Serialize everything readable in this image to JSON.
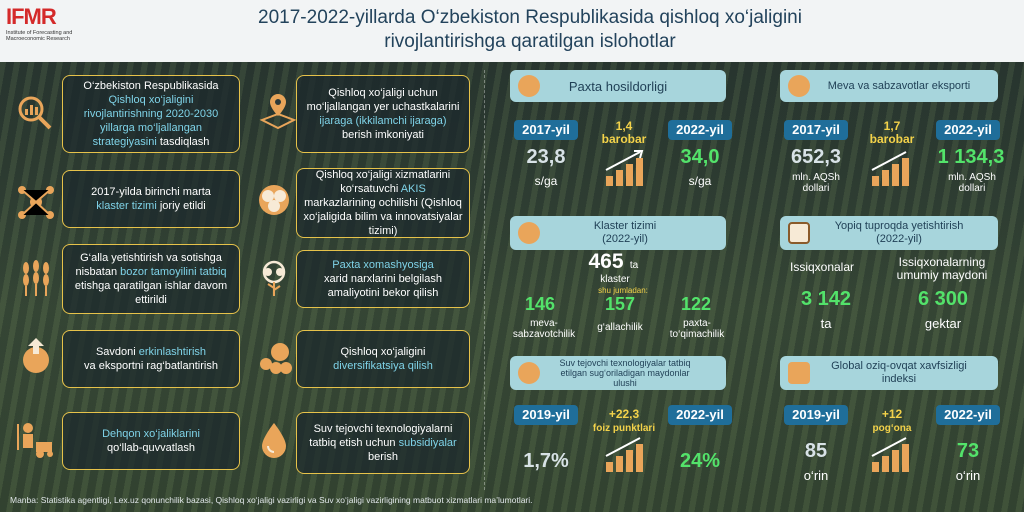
{
  "header": {
    "logo_text": "IFMR",
    "logo_sub": "Institute of Forecasting and Macroeconomic Research",
    "title_line1": "2017-2022-yillarda O‘zbekiston Respublikasida qishloq xo‘jaligini",
    "title_line2": "rivojlantirishga qaratilgan islohotlar"
  },
  "reforms": [
    {
      "pre": "O‘zbekiston Respublikasida",
      "hl": "Qishloq xo‘jaligini rivojlantirishning 2020-2030 yillarga mo‘ljallangan strategiyasini",
      "post": "tasdiqlash"
    },
    {
      "pre": "Qishloq xo‘jaligi uchun mo‘ljallangan yer uchastkalarini",
      "hl": "ijaraga (ikkilamchi ijaraga)",
      "post": "berish imkoniyati"
    },
    {
      "pre": "2017-yilda birinchi marta",
      "hl": "klaster tizimi",
      "post": "joriy etildi"
    },
    {
      "pre": "Qishloq xo‘jaligi xizmatlarini ko‘rsatuvchi",
      "hl": "AKIS",
      "post": "markazlarining ochilishi (Qishloq xo‘jaligida bilim va innovatsiyalar tizimi)"
    },
    {
      "pre": "G‘alla yetishtirish va sotishga nisbatan",
      "hl": "bozor tamoyilini tatbiq",
      "post": "etishga qaratilgan ishlar davom ettirildi"
    },
    {
      "pre": "",
      "hl": "Paxta xomashyosiga",
      "post": "xarid narxlarini belgilash amaliyotini bekor qilish"
    },
    {
      "pre": "Savdoni",
      "hl": "erkinlashtirish",
      "post": "va eksportni rag‘batlantirish"
    },
    {
      "pre": "Qishloq xo‘jaligini",
      "hl": "diversifikatsiya qilish",
      "post": ""
    },
    {
      "pre": "",
      "hl": "Dehqon xo‘jaliklarini",
      "post": "qo‘llab-quvvatlash"
    },
    {
      "pre": "Suv tejovchi texnologiyalarni tatbiq etish uchun",
      "hl": "subsidiyalar",
      "post": "berish"
    }
  ],
  "cotton": {
    "title": "Paxta hosildorligi",
    "y1": "2017-yil",
    "y2": "2022-yil",
    "v1": "23,8",
    "v2": "34,0",
    "u1": "s/ga",
    "u2": "s/ga",
    "ratio": "1,4",
    "ratio_word": "barobar"
  },
  "fruit": {
    "title": "Meva va sabzavotlar eksporti",
    "y1": "2017-yil",
    "y2": "2022-yil",
    "v1": "652,3",
    "v2": "1 134,3",
    "u1": "mln. AQSh dollari",
    "u2": "mln. AQSh dollari",
    "ratio": "1,7",
    "ratio_word": "barobar"
  },
  "cluster": {
    "title": "Klaster tizimi (2022-yil)",
    "total": "465",
    "total_unit": "ta",
    "total_label": "klaster",
    "sub": "shu jumladan:",
    "items": [
      {
        "v": "146",
        "l": "meva-sabzavotchilik"
      },
      {
        "v": "157",
        "l": "g‘allachilik"
      },
      {
        "v": "122",
        "l": "paxta-to‘qimachilik"
      }
    ]
  },
  "greenhouse": {
    "title": "Yopiq tuproqda yetishtirish (2022-yil)",
    "l1": "Issiqxonalar",
    "l2": "Issiqxonalarning umumiy maydoni",
    "v1": "3 142",
    "v2": "6 300",
    "u1": "ta",
    "u2": "gektar"
  },
  "water": {
    "title": "Suv tejovchi texnologiyalar tatbiq etilgan sug‘oriladigan maydonlar ulushi",
    "y1": "2019-yil",
    "y2": "2022-yil",
    "v1": "1,7%",
    "v2": "24%",
    "ratio": "+22,3",
    "ratio_word": "foiz punktlari"
  },
  "food": {
    "title": "Global oziq-ovqat xavfsizligi indeksi",
    "y1": "2019-yil",
    "y2": "2022-yil",
    "v1": "85",
    "v2": "73",
    "u1": "o‘rin",
    "u2": "o‘rin",
    "ratio": "+12",
    "ratio_word": "pog‘ona"
  },
  "source": "Manba: Statistika agentligi, Lex.uz qonunchilik bazasi, Qishloq xo‘jaligi vazirligi va Suv xo‘jaligi vazirligining matbuot xizmatlari ma’lumotlari."
}
